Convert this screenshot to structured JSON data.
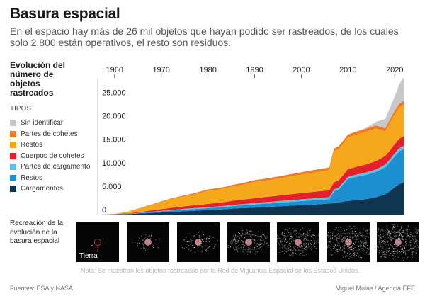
{
  "title": "Basura espacial",
  "subtitle": "En el espacio hay más de 26 mil objetos que hayan podido ser rastreados, de los cuales solo 2.800 están operativos, el resto son residuos.",
  "side_title": "Evolución del número de objetos rastreados",
  "legend_heading": "TIPOS",
  "legend": [
    {
      "label": "Sin identificar",
      "color": "#c8c8c8"
    },
    {
      "label": "Partes de cohetes",
      "color": "#f07a21"
    },
    {
      "label": "Restos",
      "color": "#f5a81c"
    },
    {
      "label": "Cuerpos de cohetes",
      "color": "#e3202c"
    },
    {
      "label": "Partes de cargamento",
      "color": "#5ec2e8"
    },
    {
      "label": "Restos",
      "color": "#1b8fd0"
    },
    {
      "label": "Cargamentos",
      "color": "#0f3550"
    }
  ],
  "recreation_title": "Recreación de la evolución de la basura espacial",
  "earth_label": "Tierra",
  "note": "Nota: Se muestran los objetos rastreados por la Red de Vigilancia Espacial de los Estados Unidos.",
  "source": "Fuentes: ESA y NASA.",
  "credit": "Miguel Mulas / Agencia EFE",
  "thumbnail_count": 7,
  "chart_data": {
    "type": "area",
    "stacked": true,
    "x": [
      1957,
      1960,
      1963,
      1966,
      1969,
      1972,
      1975,
      1977,
      1979,
      1980,
      1982,
      1984,
      1985,
      1986,
      1988,
      1990,
      1992,
      1994,
      1996,
      1998,
      2000,
      2002,
      2004,
      2006,
      2007,
      2008,
      2010,
      2012,
      2014,
      2016,
      2018,
      2019,
      2020,
      2021,
      2022
    ],
    "xticks": [
      1960,
      1970,
      1980,
      1990,
      2000,
      2010,
      2020
    ],
    "yticks": [
      0,
      5000,
      10000,
      15000,
      20000,
      25000
    ],
    "ytick_labels": [
      "0",
      "5.000",
      "10.000",
      "15.000",
      "20.000",
      "25.000"
    ],
    "xlim": [
      1957,
      2023
    ],
    "ylim": [
      0,
      29000
    ],
    "grid": false,
    "series": [
      {
        "name": "Cargamentos",
        "color": "#0f3550",
        "values": [
          0,
          30,
          100,
          250,
          400,
          550,
          700,
          800,
          900,
          950,
          1050,
          1150,
          1250,
          1300,
          1400,
          1500,
          1600,
          1700,
          1800,
          1900,
          2000,
          2100,
          2200,
          2350,
          2450,
          2600,
          2900,
          3100,
          3300,
          3700,
          4300,
          5000,
          5800,
          6500,
          6900
        ]
      },
      {
        "name": "Restos",
        "color": "#1b8fd0",
        "values": [
          0,
          20,
          50,
          120,
          200,
          280,
          350,
          380,
          400,
          420,
          460,
          500,
          520,
          550,
          600,
          650,
          700,
          740,
          780,
          820,
          860,
          900,
          930,
          950,
          2500,
          2700,
          4700,
          5000,
          5200,
          5400,
          5800,
          6200,
          6600,
          7000,
          7100
        ]
      },
      {
        "name": "Partes de cargamento",
        "color": "#5ec2e8",
        "values": [
          0,
          10,
          30,
          60,
          100,
          140,
          170,
          190,
          200,
          210,
          230,
          250,
          260,
          270,
          290,
          300,
          320,
          340,
          360,
          380,
          390,
          400,
          410,
          420,
          430,
          440,
          460,
          480,
          500,
          520,
          560,
          600,
          640,
          680,
          700
        ]
      },
      {
        "name": "Cuerpos de cohetes",
        "color": "#e3202c",
        "values": [
          0,
          30,
          90,
          200,
          320,
          440,
          540,
          600,
          660,
          700,
          760,
          820,
          860,
          900,
          960,
          1020,
          1080,
          1140,
          1200,
          1260,
          1320,
          1380,
          1440,
          1480,
          1510,
          1540,
          1600,
          1660,
          1720,
          1780,
          1840,
          1900,
          1960,
          2000,
          2050
        ]
      },
      {
        "name": "Restos",
        "color": "#f5a81c",
        "values": [
          0,
          60,
          350,
          850,
          1350,
          1850,
          2150,
          2350,
          2650,
          2800,
          2800,
          2950,
          3050,
          3100,
          3250,
          3500,
          3500,
          3600,
          3700,
          3850,
          3950,
          4100,
          4200,
          4300,
          6600,
          6700,
          6800,
          6900,
          7000,
          6950,
          5200,
          5900,
          6400,
          6700,
          6800
        ]
      },
      {
        "name": "Partes de cohetes",
        "color": "#f07a21",
        "values": [
          0,
          10,
          40,
          80,
          120,
          160,
          200,
          230,
          260,
          280,
          300,
          320,
          330,
          340,
          360,
          380,
          400,
          420,
          440,
          460,
          480,
          500,
          520,
          540,
          560,
          580,
          600,
          620,
          640,
          660,
          700,
          720,
          740,
          760,
          780
        ]
      },
      {
        "name": "Sin identificar",
        "color": "#c8c8c8",
        "values": [
          0,
          0,
          0,
          0,
          0,
          0,
          0,
          0,
          0,
          0,
          0,
          0,
          0,
          0,
          0,
          0,
          0,
          0,
          0,
          0,
          0,
          0,
          0,
          0,
          0,
          0,
          0,
          0,
          200,
          800,
          2000,
          2500,
          3000,
          4200,
          5000
        ]
      }
    ]
  }
}
